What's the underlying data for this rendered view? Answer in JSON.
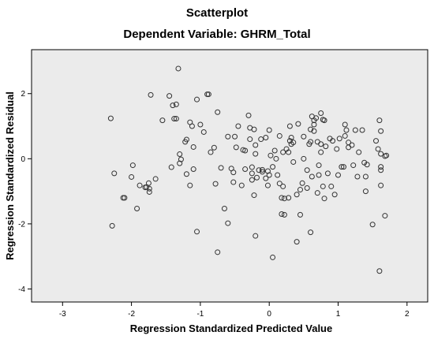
{
  "chart_data": {
    "type": "scatter",
    "title": "Scatterplot",
    "subtitle": "Dependent Variable: GHRM_Total",
    "xlabel": "Regression Standardized Predicted Value",
    "ylabel": "Regression Standardized Residual",
    "xlim": [
      -3.45,
      2.3
    ],
    "ylim": [
      -4.4,
      3.35
    ],
    "xticks": [
      -3,
      -2,
      -1,
      0,
      1,
      2
    ],
    "yticks": [
      -4,
      -2,
      0,
      2
    ],
    "grid": false,
    "plot_background": "#ebebeb",
    "marker_color": "#333333",
    "points": [
      [
        -2.3,
        1.24
      ],
      [
        -2.28,
        -2.06
      ],
      [
        -2.25,
        -0.45
      ],
      [
        -2.12,
        -1.2
      ],
      [
        -2.1,
        -1.2
      ],
      [
        -2.0,
        -0.56
      ],
      [
        -1.98,
        -0.2
      ],
      [
        -1.92,
        -1.53
      ],
      [
        -1.88,
        -0.82
      ],
      [
        -1.8,
        -0.88
      ],
      [
        -1.78,
        -0.87
      ],
      [
        -1.75,
        -0.75
      ],
      [
        -1.74,
        -0.92
      ],
      [
        -1.74,
        -1.02
      ],
      [
        -1.72,
        1.96
      ],
      [
        -1.65,
        -0.62
      ],
      [
        -1.55,
        1.18
      ],
      [
        -1.45,
        1.93
      ],
      [
        -1.42,
        -0.26
      ],
      [
        -1.4,
        1.64
      ],
      [
        -1.38,
        1.23
      ],
      [
        -1.35,
        1.67
      ],
      [
        -1.35,
        1.23
      ],
      [
        -1.32,
        2.77
      ],
      [
        -1.3,
        -0.14
      ],
      [
        -1.3,
        0.14
      ],
      [
        -1.28,
        -0.02
      ],
      [
        -1.22,
        0.52
      ],
      [
        -1.2,
        0.59
      ],
      [
        -1.2,
        -0.47
      ],
      [
        -1.15,
        1.12
      ],
      [
        -1.15,
        -0.82
      ],
      [
        -1.12,
        1.0
      ],
      [
        -1.1,
        0.36
      ],
      [
        -1.1,
        -0.32
      ],
      [
        -1.05,
        1.82
      ],
      [
        -1.05,
        -2.24
      ],
      [
        -1.0,
        1.05
      ],
      [
        -0.95,
        0.82
      ],
      [
        -0.9,
        1.98
      ],
      [
        -0.88,
        1.98
      ],
      [
        -0.85,
        0.2
      ],
      [
        -0.8,
        0.34
      ],
      [
        -0.78,
        -0.77
      ],
      [
        -0.75,
        1.43
      ],
      [
        -0.75,
        -2.87
      ],
      [
        -0.7,
        -0.28
      ],
      [
        -0.65,
        -1.53
      ],
      [
        -0.6,
        -1.98
      ],
      [
        -0.6,
        0.68
      ],
      [
        -0.55,
        -0.3
      ],
      [
        -0.52,
        -0.42
      ],
      [
        -0.52,
        -0.72
      ],
      [
        -0.5,
        0.68
      ],
      [
        -0.48,
        0.35
      ],
      [
        -0.45,
        1.0
      ],
      [
        -0.4,
        -0.82
      ],
      [
        -0.38,
        0.27
      ],
      [
        -0.35,
        0.25
      ],
      [
        -0.35,
        -0.32
      ],
      [
        -0.3,
        1.33
      ],
      [
        -0.28,
        0.6
      ],
      [
        -0.28,
        0.95
      ],
      [
        -0.25,
        -0.26
      ],
      [
        -0.25,
        -0.45
      ],
      [
        -0.25,
        -0.65
      ],
      [
        -0.22,
        0.9
      ],
      [
        -0.22,
        -1.12
      ],
      [
        -0.2,
        0.42
      ],
      [
        -0.2,
        0.15
      ],
      [
        -0.2,
        -2.37
      ],
      [
        -0.18,
        -0.58
      ],
      [
        -0.15,
        -0.35
      ],
      [
        -0.12,
        0.6
      ],
      [
        -0.1,
        -0.34
      ],
      [
        -0.1,
        -0.4
      ],
      [
        -0.05,
        0.65
      ],
      [
        -0.05,
        -0.6
      ],
      [
        -0.02,
        -0.82
      ],
      [
        -0.02,
        -0.38
      ],
      [
        0.0,
        0.88
      ],
      [
        0.0,
        -0.5
      ],
      [
        0.02,
        0.1
      ],
      [
        0.05,
        -3.03
      ],
      [
        0.05,
        -0.25
      ],
      [
        0.08,
        0.25
      ],
      [
        0.1,
        0.0
      ],
      [
        0.12,
        -0.5
      ],
      [
        0.15,
        0.7
      ],
      [
        0.15,
        -0.76
      ],
      [
        0.18,
        -1.2
      ],
      [
        0.18,
        -1.7
      ],
      [
        0.2,
        0.2
      ],
      [
        0.2,
        -0.85
      ],
      [
        0.22,
        -1.72
      ],
      [
        0.22,
        -1.22
      ],
      [
        0.25,
        0.3
      ],
      [
        0.28,
        -1.2
      ],
      [
        0.28,
        0.2
      ],
      [
        0.3,
        1.0
      ],
      [
        0.3,
        0.55
      ],
      [
        0.32,
        0.65
      ],
      [
        0.32,
        0.45
      ],
      [
        0.35,
        0.5
      ],
      [
        0.35,
        -0.1
      ],
      [
        0.4,
        -2.55
      ],
      [
        0.4,
        -1.1
      ],
      [
        0.42,
        1.07
      ],
      [
        0.45,
        -1.72
      ],
      [
        0.45,
        -0.95
      ],
      [
        0.48,
        -0.75
      ],
      [
        0.5,
        0.68
      ],
      [
        0.5,
        0.0
      ],
      [
        0.55,
        -0.35
      ],
      [
        0.55,
        -0.9
      ],
      [
        0.58,
        0.45
      ],
      [
        0.6,
        0.9
      ],
      [
        0.6,
        0.52
      ],
      [
        0.6,
        -2.26
      ],
      [
        0.62,
        1.3
      ],
      [
        0.62,
        -0.55
      ],
      [
        0.65,
        1.18
      ],
      [
        0.65,
        1.05
      ],
      [
        0.65,
        0.85
      ],
      [
        0.68,
        1.25
      ],
      [
        0.7,
        0.52
      ],
      [
        0.7,
        -1.05
      ],
      [
        0.72,
        -0.2
      ],
      [
        0.72,
        -0.5
      ],
      [
        0.75,
        0.45
      ],
      [
        0.75,
        0.2
      ],
      [
        0.75,
        1.4
      ],
      [
        0.78,
        1.2
      ],
      [
        0.78,
        -0.85
      ],
      [
        0.8,
        1.18
      ],
      [
        0.8,
        -1.22
      ],
      [
        0.82,
        0.38
      ],
      [
        0.85,
        -0.45
      ],
      [
        0.88,
        0.62
      ],
      [
        0.9,
        -0.85
      ],
      [
        0.92,
        0.55
      ],
      [
        0.95,
        -1.1
      ],
      [
        0.98,
        0.3
      ],
      [
        1.0,
        -0.5
      ],
      [
        1.02,
        0.62
      ],
      [
        1.05,
        -0.25
      ],
      [
        1.08,
        -0.25
      ],
      [
        1.1,
        1.05
      ],
      [
        1.1,
        0.7
      ],
      [
        1.12,
        0.88
      ],
      [
        1.15,
        0.5
      ],
      [
        1.15,
        0.35
      ],
      [
        1.2,
        0.42
      ],
      [
        1.22,
        -0.2
      ],
      [
        1.25,
        0.88
      ],
      [
        1.28,
        -0.55
      ],
      [
        1.3,
        0.2
      ],
      [
        1.35,
        0.88
      ],
      [
        1.38,
        -0.12
      ],
      [
        1.4,
        -0.55
      ],
      [
        1.4,
        -1.0
      ],
      [
        1.42,
        -0.18
      ],
      [
        1.5,
        -2.02
      ],
      [
        1.55,
        0.55
      ],
      [
        1.58,
        0.3
      ],
      [
        1.6,
        -3.45
      ],
      [
        1.6,
        1.18
      ],
      [
        1.62,
        0.85
      ],
      [
        1.62,
        0.15
      ],
      [
        1.62,
        -0.25
      ],
      [
        1.62,
        -0.35
      ],
      [
        1.62,
        -0.82
      ],
      [
        1.68,
        0.08
      ],
      [
        1.68,
        -1.75
      ],
      [
        1.7,
        0.1
      ]
    ]
  }
}
